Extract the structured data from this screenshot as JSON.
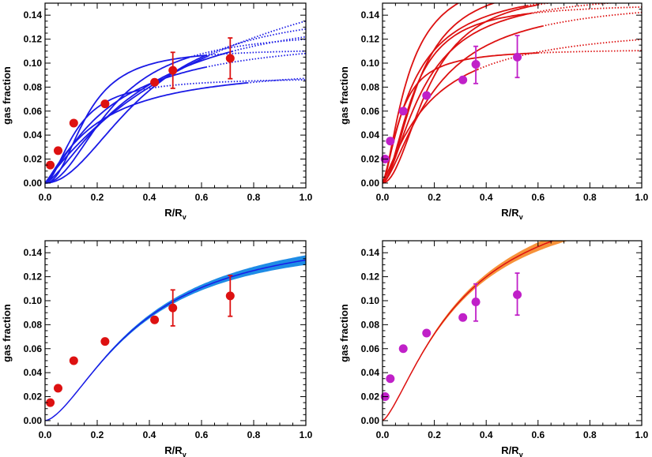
{
  "colors": {
    "blue_line": "#1a1ae6",
    "red_line": "#dd1111",
    "red_marker": "#dd1111",
    "magenta_marker": "#c020c8",
    "blue_band": "#1e8ce6",
    "orange_band": "#f7923a",
    "frame": "#000000"
  },
  "chart_data": [
    {
      "type": "line",
      "panel": "top-left",
      "xlabel": "R/R",
      "xlabel_sub": "v",
      "ylabel": "gas fraction",
      "xlim": [
        0,
        1.0
      ],
      "ylim": [
        -0.004,
        0.15
      ],
      "xticks": [
        "0.0",
        "0.2",
        "0.4",
        "0.6",
        "0.8",
        "1.0"
      ],
      "yticks": [
        "0.00",
        "0.02",
        "0.04",
        "0.06",
        "0.08",
        "0.10",
        "0.12",
        "0.14"
      ],
      "line_color": "blue_line",
      "marker_color": "red_marker",
      "model_curves": [
        {
          "A": 0.147,
          "s": 0.38,
          "n": 2.0,
          "solid_to": 0.62
        },
        {
          "A": 0.128,
          "s": 0.26,
          "n": 2.0,
          "solid_to": 0.55
        },
        {
          "A": 0.15,
          "s": 0.35,
          "n": 1.4,
          "solid_to": 0.72
        },
        {
          "A": 0.112,
          "s": 0.16,
          "n": 2.2,
          "solid_to": 0.62
        },
        {
          "A": 0.125,
          "s": 0.24,
          "n": 1.3,
          "solid_to": 0.62
        },
        {
          "A": 0.1,
          "s": 0.2,
          "n": 1.2,
          "solid_to": 0.78
        },
        {
          "A": 0.088,
          "s": 0.12,
          "n": 1.8,
          "solid_to": 0.37
        },
        {
          "A": 0.25,
          "s": 0.85,
          "n": 1.0,
          "solid_to": 0.63
        }
      ],
      "points": [
        {
          "x": 0.02,
          "y": 0.015
        },
        {
          "x": 0.05,
          "y": 0.027
        },
        {
          "x": 0.11,
          "y": 0.05
        },
        {
          "x": 0.23,
          "y": 0.066
        },
        {
          "x": 0.42,
          "y": 0.084
        },
        {
          "x": 0.49,
          "y": 0.094,
          "err": [
            0.079,
            0.109
          ]
        },
        {
          "x": 0.71,
          "y": 0.104,
          "err": [
            0.087,
            0.121
          ]
        }
      ]
    },
    {
      "type": "line",
      "panel": "top-right",
      "xlabel": "R/R",
      "xlabel_sub": "v",
      "ylabel": "gas fraction",
      "xlim": [
        0,
        1.0
      ],
      "ylim": [
        -0.004,
        0.15
      ],
      "xticks": [
        "0.0",
        "0.2",
        "0.4",
        "0.6",
        "0.8",
        "1.0"
      ],
      "yticks": [
        "0.00",
        "0.02",
        "0.04",
        "0.06",
        "0.08",
        "0.10",
        "0.12",
        "0.14"
      ],
      "line_color": "red_line",
      "marker_color": "magenta_marker",
      "model_curves": [
        {
          "A": 0.18,
          "s": 0.1,
          "n": 1.5,
          "solid_to": 0.52
        },
        {
          "A": 0.17,
          "s": 0.14,
          "n": 1.8,
          "solid_to": 0.55
        },
        {
          "A": 0.168,
          "s": 0.12,
          "n": 1.3,
          "solid_to": 0.56
        },
        {
          "A": 0.16,
          "s": 0.16,
          "n": 1.6,
          "solid_to": 0.58
        },
        {
          "A": 0.162,
          "s": 0.18,
          "n": 2.0,
          "solid_to": 0.6
        },
        {
          "A": 0.155,
          "s": 0.2,
          "n": 1.5,
          "solid_to": 0.62
        },
        {
          "A": 0.15,
          "s": 0.12,
          "n": 1.8,
          "solid_to": 0.56
        },
        {
          "A": 0.112,
          "s": 0.07,
          "n": 1.6,
          "solid_to": 0.6
        },
        {
          "A": 0.135,
          "s": 0.18,
          "n": 1.2,
          "solid_to": 0.37
        }
      ],
      "points": [
        {
          "x": 0.01,
          "y": 0.02
        },
        {
          "x": 0.03,
          "y": 0.035
        },
        {
          "x": 0.08,
          "y": 0.06
        },
        {
          "x": 0.17,
          "y": 0.073
        },
        {
          "x": 0.31,
          "y": 0.086
        },
        {
          "x": 0.36,
          "y": 0.099,
          "err": [
            0.083,
            0.114
          ]
        },
        {
          "x": 0.52,
          "y": 0.105,
          "err": [
            0.088,
            0.123
          ]
        }
      ]
    },
    {
      "type": "area",
      "panel": "bottom-left",
      "xlabel": "R/R",
      "xlabel_sub": "v",
      "ylabel": "gas fraction",
      "xlim": [
        0,
        1.0
      ],
      "ylim": [
        -0.004,
        0.15
      ],
      "xticks": [
        "0.0",
        "0.2",
        "0.4",
        "0.6",
        "0.8",
        "1.0"
      ],
      "yticks": [
        "0.00",
        "0.02",
        "0.04",
        "0.06",
        "0.08",
        "0.10",
        "0.12",
        "0.14"
      ],
      "band_color": "blue_band",
      "line_color": "blue_line",
      "marker_color": "red_marker",
      "fit": {
        "A": 0.16,
        "s": 0.36,
        "n": 1.6
      },
      "band_width": [
        0.0,
        0.008
      ],
      "points": [
        {
          "x": 0.02,
          "y": 0.015
        },
        {
          "x": 0.05,
          "y": 0.027
        },
        {
          "x": 0.11,
          "y": 0.05
        },
        {
          "x": 0.23,
          "y": 0.066
        },
        {
          "x": 0.42,
          "y": 0.084
        },
        {
          "x": 0.49,
          "y": 0.094,
          "err": [
            0.079,
            0.109
          ]
        },
        {
          "x": 0.71,
          "y": 0.104,
          "err": [
            0.087,
            0.121
          ]
        }
      ]
    },
    {
      "type": "area",
      "panel": "bottom-right",
      "xlabel": "R/R",
      "xlabel_sub": "v",
      "ylabel": "gas fraction",
      "xlim": [
        0,
        1.0
      ],
      "ylim": [
        -0.004,
        0.15
      ],
      "xticks": [
        "0.0",
        "0.2",
        "0.4",
        "0.6",
        "0.8",
        "1.0"
      ],
      "yticks": [
        "0.00",
        "0.02",
        "0.04",
        "0.06",
        "0.08",
        "0.10",
        "0.12",
        "0.14"
      ],
      "band_color": "orange_band",
      "line_color": "red_line",
      "marker_color": "magenta_marker",
      "fit": {
        "A": 0.2,
        "s": 0.3,
        "n": 1.4
      },
      "band_width": [
        0.0,
        0.012
      ],
      "points": [
        {
          "x": 0.01,
          "y": 0.02
        },
        {
          "x": 0.03,
          "y": 0.035
        },
        {
          "x": 0.08,
          "y": 0.06
        },
        {
          "x": 0.17,
          "y": 0.073
        },
        {
          "x": 0.31,
          "y": 0.086
        },
        {
          "x": 0.36,
          "y": 0.099,
          "err": [
            0.083,
            0.114
          ]
        },
        {
          "x": 0.52,
          "y": 0.105,
          "err": [
            0.088,
            0.123
          ]
        }
      ]
    }
  ]
}
